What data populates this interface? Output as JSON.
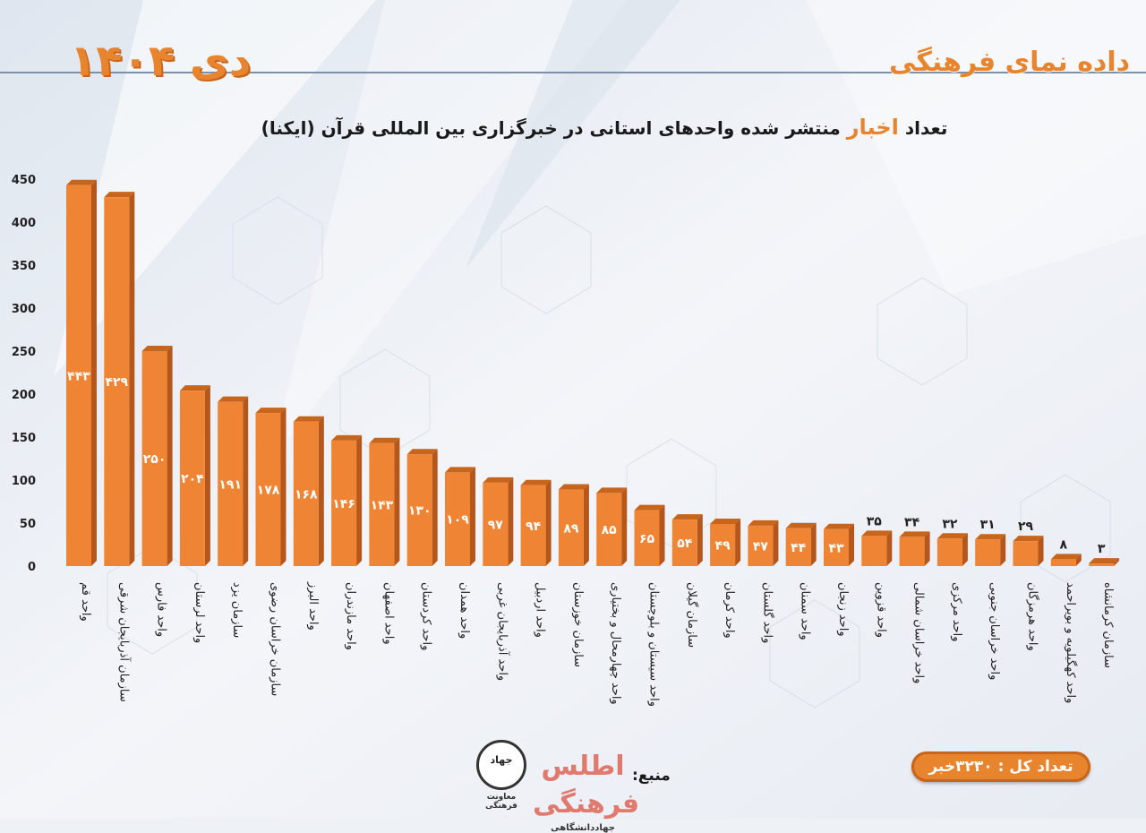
{
  "header": {
    "brand": "داده نمای فرهنگی",
    "date": "دی ۱۴۰۴"
  },
  "title": {
    "before": "تعداد ",
    "highlight": "اخبار",
    "after": " منتشر شده واحدهای استانی در خبرگزاری بین المللی قرآن (ایکنا)"
  },
  "footer": {
    "total": "تعداد کل : ۳۲۳۰خبر",
    "source_label": "منبع:",
    "logo_atlas": "اطلس فرهنگی",
    "logo_atlas_sub": "جهاددانشگاهی",
    "logo_jahad": "جهاد",
    "logo_jahad_sub": "معاونت فرهنگی"
  },
  "colors": {
    "bar_front": "#ee8434",
    "bar_top": "#c8651d",
    "bar_side": "#b5561a",
    "accent": "#e8842e"
  },
  "chart_data": {
    "type": "bar",
    "title": "تعداد اخبار منتشر شده واحدهای استانی در خبرگزاری بین المللی قرآن (ایکنا)",
    "xlabel": "",
    "ylabel": "",
    "ylim": [
      0,
      450
    ],
    "yticks": [
      0,
      50,
      100,
      150,
      200,
      250,
      300,
      350,
      400,
      450
    ],
    "ytick_labels": [
      "0",
      "50",
      "100",
      "150",
      "200",
      "250",
      "300",
      "350",
      "400",
      "450"
    ],
    "grid": false,
    "categories": [
      "واحد قم",
      "سازمان آذربایجان شرقی",
      "واحد فارس",
      "واحد لرستان",
      "سازمان یزد",
      "سازمان خراسان رضوی",
      "واحد البرز",
      "واحد مازندران",
      "واحد اصفهان",
      "واحد کردستان",
      "واحد همدان",
      "واحد آذربایجان غربی",
      "واحد اردبیل",
      "سازمان خوزستان",
      "واحد چهارمحال و بختیاری",
      "واحد سیستان و بلوچستان",
      "سازمان گیلان",
      "واحد کرمان",
      "واحد گلستان",
      "واحد سمنان",
      "واحد زنجان",
      "واحد قزوین",
      "واحد خراسان شمالی",
      "واحد مرکزی",
      "واحد خراسان جنوبی",
      "واحد هرمزگان",
      "واحد کهگیلویه و بویراحمد",
      "سازمان کرمانشاه"
    ],
    "values": [
      443,
      429,
      250,
      204,
      191,
      178,
      168,
      146,
      143,
      130,
      109,
      97,
      94,
      89,
      85,
      65,
      54,
      49,
      47,
      44,
      43,
      35,
      34,
      32,
      31,
      29,
      8,
      3
    ],
    "value_labels": [
      "۴۴۳",
      "۴۲۹",
      "۲۵۰",
      "۲۰۴",
      "۱۹۱",
      "۱۷۸",
      "۱۶۸",
      "۱۴۶",
      "۱۴۳",
      "۱۳۰",
      "۱۰۹",
      "۹۷",
      "۹۴",
      "۸۹",
      "۸۵",
      "۶۵",
      "۵۴",
      "۴۹",
      "۴۷",
      "۴۴",
      "۴۳",
      "۳۵",
      "۳۴",
      "۳۲",
      "۳۱",
      "۲۹",
      "۸",
      "۳"
    ]
  }
}
